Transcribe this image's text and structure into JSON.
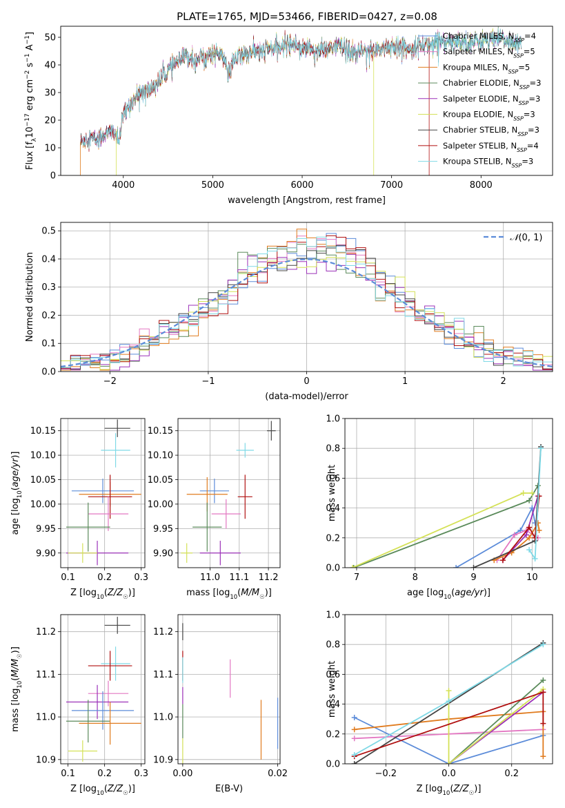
{
  "figure": {
    "title": "PLATE=1765, MJD=53466, FIBERID=0427, z=0.08"
  },
  "colors": {
    "Chabrier MILES": "#5b8bd9",
    "Salpeter MILES": "#e377c2",
    "Kroupa MILES": "#e07b1e",
    "Chabrier ELODIE": "#5a8a5a",
    "Salpeter ELODIE": "#9b30b8",
    "Kroupa ELODIE": "#d4e157",
    "Chabrier STELIB": "#444444",
    "Salpeter STELIB": "#b00f0f",
    "Kroupa STELIB": "#7fd9e6"
  },
  "chart_data": [
    {
      "id": "spectrum",
      "type": "line",
      "xlabel": "wavelength [Angstrom, rest frame]",
      "ylabel": "Flux [f_λ10^-17 erg cm^-2 s^-1 A^-1]",
      "xlim": [
        3300,
        8800
      ],
      "ylim": [
        0,
        54
      ],
      "xticks": [
        4000,
        5000,
        6000,
        7000,
        8000
      ],
      "yticks": [
        0,
        10,
        20,
        30,
        40,
        50
      ],
      "grid": false,
      "legend_position": "top-right",
      "legend": [
        {
          "label": "Chabrier MILES, N",
          "sub": "SSP",
          "suffix": "=4",
          "color": "#5b8bd9"
        },
        {
          "label": "Salpeter MILES, N",
          "sub": "SSP",
          "suffix": "=5",
          "color": "#e377c2"
        },
        {
          "label": "Kroupa MILES, N",
          "sub": "SSP",
          "suffix": "=5",
          "color": "#e07b1e"
        },
        {
          "label": "Chabrier ELODIE, N",
          "sub": "SSP",
          "suffix": "=3",
          "color": "#5a8a5a"
        },
        {
          "label": "Salpeter ELODIE, N",
          "sub": "SSP",
          "suffix": "=3",
          "color": "#9b30b8"
        },
        {
          "label": "Kroupa ELODIE, N",
          "sub": "SSP",
          "suffix": "=3",
          "color": "#d4e157"
        },
        {
          "label": "Chabrier STELIB, N",
          "sub": "SSP",
          "suffix": "=3",
          "color": "#444444"
        },
        {
          "label": "Salpeter STELIB, N",
          "sub": "SSP",
          "suffix": "=4",
          "color": "#b00f0f"
        },
        {
          "label": "Kroupa STELIB, N",
          "sub": "SSP",
          "suffix": "=3",
          "color": "#7fd9e6"
        }
      ],
      "spectrum_knots": [
        [
          3520,
          12
        ],
        [
          3600,
          14
        ],
        [
          3700,
          13
        ],
        [
          3800,
          15
        ],
        [
          3900,
          16
        ],
        [
          3950,
          12
        ],
        [
          4000,
          22
        ],
        [
          4100,
          27
        ],
        [
          4200,
          30
        ],
        [
          4300,
          31
        ],
        [
          4400,
          34
        ],
        [
          4500,
          38
        ],
        [
          4600,
          41
        ],
        [
          4700,
          43
        ],
        [
          4800,
          42
        ],
        [
          4900,
          43
        ],
        [
          5000,
          44
        ],
        [
          5100,
          44
        ],
        [
          5175,
          37
        ],
        [
          5250,
          42
        ],
        [
          5350,
          44
        ],
        [
          5450,
          45
        ],
        [
          5550,
          45
        ],
        [
          5650,
          46
        ],
        [
          5750,
          46
        ],
        [
          5850,
          48
        ],
        [
          5950,
          47
        ],
        [
          6050,
          46
        ],
        [
          6200,
          45
        ],
        [
          6400,
          47
        ],
        [
          6563,
          44
        ],
        [
          6700,
          45
        ],
        [
          6900,
          46
        ],
        [
          7000,
          47
        ],
        [
          7150,
          46
        ],
        [
          7300,
          47
        ],
        [
          7500,
          48
        ],
        [
          7700,
          49
        ],
        [
          7900,
          48
        ],
        [
          8100,
          49
        ],
        [
          8300,
          49
        ],
        [
          8450,
          47
        ]
      ]
    },
    {
      "id": "residual-histogram",
      "type": "histogram",
      "xlabel": "(data-model)/error",
      "ylabel": "Normed distribution",
      "xlim": [
        -2.5,
        2.5
      ],
      "ylim": [
        0,
        0.53
      ],
      "xticks": [
        -2,
        -1,
        0,
        1,
        2
      ],
      "yticks": [
        0.0,
        0.1,
        0.2,
        0.3,
        0.4,
        0.5
      ],
      "grid": true,
      "legend_position": "top-right",
      "legend": [
        {
          "label": "N(0,1)",
          "color": "#5b8bd9",
          "style": "dashed"
        }
      ],
      "bin_width": 0.1,
      "bin_start": -2.5
    },
    {
      "id": "age-vs-Z",
      "type": "errorbar",
      "xlabel": "Z [log10(Z/Z☉)]",
      "ylabel": "age [log10(age/yr)]",
      "xlim": [
        0.08,
        0.31
      ],
      "ylim": [
        9.87,
        10.175
      ],
      "xticks": [
        0.1,
        0.2,
        0.3
      ],
      "yticks": [
        9.9,
        9.95,
        10.0,
        10.05,
        10.1,
        10.15
      ],
      "grid": true,
      "points": [
        {
          "model": "Chabrier STELIB",
          "x": 0.235,
          "y": 10.155,
          "xerr": 0.035,
          "yerr": 0.018
        },
        {
          "model": "Kroupa STELIB",
          "x": 0.23,
          "y": 10.11,
          "xerr": 0.04,
          "yerr": 0.035
        },
        {
          "model": "Chabrier MILES",
          "x": 0.195,
          "y": 10.027,
          "xerr": 0.085,
          "yerr": 0.025
        },
        {
          "model": "Kroupa MILES",
          "x": 0.215,
          "y": 10.02,
          "xerr": 0.085,
          "yerr": 0.025
        },
        {
          "model": "Salpeter STELIB",
          "x": 0.215,
          "y": 10.015,
          "xerr": 0.06,
          "yerr": 0.045
        },
        {
          "model": "Salpeter MILES",
          "x": 0.21,
          "y": 9.98,
          "xerr": 0.055,
          "yerr": 0.035
        },
        {
          "model": "Chabrier ELODIE",
          "x": 0.155,
          "y": 9.953,
          "xerr": 0.06,
          "yerr": 0.05
        },
        {
          "model": "Salpeter ELODIE",
          "x": 0.18,
          "y": 9.9,
          "xerr": 0.085,
          "yerr": 0.025
        },
        {
          "model": "Kroupa ELODIE",
          "x": 0.14,
          "y": 9.9,
          "xerr": 0.04,
          "yerr": 0.02
        }
      ]
    },
    {
      "id": "age-vs-mass",
      "type": "errorbar",
      "xlabel": "mass [log10(M/M☉)]",
      "ylabel": "",
      "xlim": [
        10.89,
        11.24
      ],
      "ylim": [
        9.87,
        10.175
      ],
      "xticks": [
        11.0,
        11.1,
        11.2
      ],
      "yticks": [
        9.9,
        9.95,
        10.0,
        10.05,
        10.1,
        10.15
      ],
      "grid": true,
      "points": [
        {
          "model": "Chabrier STELIB",
          "x": 11.21,
          "y": 10.15,
          "xerr": 0.015,
          "yerr": 0.02
        },
        {
          "model": "Kroupa STELIB",
          "x": 11.12,
          "y": 10.11,
          "xerr": 0.03,
          "yerr": 0.015
        },
        {
          "model": "Chabrier MILES",
          "x": 11.015,
          "y": 10.027,
          "xerr": 0.05,
          "yerr": 0.025
        },
        {
          "model": "Kroupa MILES",
          "x": 10.99,
          "y": 10.02,
          "xerr": 0.07,
          "yerr": 0.035
        },
        {
          "model": "Salpeter STELIB",
          "x": 11.12,
          "y": 10.015,
          "xerr": 0.025,
          "yerr": 0.045
        },
        {
          "model": "Salpeter MILES",
          "x": 11.055,
          "y": 9.98,
          "xerr": 0.05,
          "yerr": 0.03
        },
        {
          "model": "Chabrier ELODIE",
          "x": 10.99,
          "y": 9.953,
          "xerr": 0.05,
          "yerr": 0.05
        },
        {
          "model": "Salpeter ELODIE",
          "x": 11.035,
          "y": 9.9,
          "xerr": 0.07,
          "yerr": 0.025
        },
        {
          "model": "Kroupa ELODIE",
          "x": 10.92,
          "y": 9.9,
          "xerr": 0.02,
          "yerr": 0.02
        }
      ]
    },
    {
      "id": "massweight-vs-age",
      "type": "line",
      "xlabel": "age [log10(age/yr)]",
      "ylabel": "mass weight",
      "xlim": [
        6.8,
        10.35
      ],
      "ylim": [
        0,
        1.0
      ],
      "xticks": [
        7,
        8,
        9,
        10
      ],
      "yticks": [
        0.0,
        0.2,
        0.4,
        0.6,
        0.8,
        1.0
      ],
      "grid": true,
      "series": [
        {
          "model": "Chabrier MILES",
          "x": [
            8.7,
            9.8,
            10.0,
            10.05
          ],
          "y": [
            0.0,
            0.25,
            0.4,
            0.3
          ]
        },
        {
          "model": "Salpeter MILES",
          "x": [
            9.4,
            9.7,
            9.9,
            10.1
          ],
          "y": [
            0.05,
            0.22,
            0.25,
            0.2
          ]
        },
        {
          "model": "Kroupa MILES",
          "x": [
            9.35,
            9.65,
            9.95,
            10.1,
            10.12
          ],
          "y": [
            0.05,
            0.1,
            0.2,
            0.3,
            0.25
          ]
        },
        {
          "model": "Chabrier ELODIE",
          "x": [
            6.95,
            9.95,
            10.1
          ],
          "y": [
            0.0,
            0.45,
            0.55
          ]
        },
        {
          "model": "Salpeter ELODIE",
          "x": [
            9.5,
            9.9,
            10.1
          ],
          "y": [
            0.05,
            0.22,
            0.48
          ]
        },
        {
          "model": "Kroupa ELODIE",
          "x": [
            6.93,
            9.85,
            10.0
          ],
          "y": [
            0.0,
            0.5,
            0.5
          ]
        },
        {
          "model": "Chabrier STELIB",
          "x": [
            9.0,
            10.05,
            10.15
          ],
          "y": [
            0.0,
            0.18,
            0.81
          ]
        },
        {
          "model": "Salpeter STELIB",
          "x": [
            9.5,
            9.95,
            10.05,
            10.12
          ],
          "y": [
            0.05,
            0.27,
            0.2,
            0.48
          ]
        },
        {
          "model": "Kroupa STELIB",
          "x": [
            9.95,
            10.05,
            10.15
          ],
          "y": [
            0.12,
            0.06,
            0.8
          ]
        }
      ]
    },
    {
      "id": "mass-vs-Z",
      "type": "errorbar",
      "xlabel": "Z [log10(Z/Z☉)]",
      "ylabel": "mass [log10(M/M☉)]",
      "xlim": [
        0.08,
        0.31
      ],
      "ylim": [
        10.89,
        11.24
      ],
      "xticks": [
        0.1,
        0.2,
        0.3
      ],
      "yticks": [
        10.9,
        11.0,
        11.1,
        11.2
      ],
      "grid": true,
      "points": [
        {
          "model": "Chabrier STELIB",
          "x": 0.235,
          "y": 11.215,
          "xerr": 0.035,
          "yerr": 0.02
        },
        {
          "model": "Kroupa STELIB",
          "x": 0.23,
          "y": 11.125,
          "xerr": 0.04,
          "yerr": 0.04
        },
        {
          "model": "Salpeter STELIB",
          "x": 0.215,
          "y": 11.12,
          "xerr": 0.06,
          "yerr": 0.035
        },
        {
          "model": "Salpeter MILES",
          "x": 0.21,
          "y": 11.055,
          "xerr": 0.055,
          "yerr": 0.03
        },
        {
          "model": "Salpeter ELODIE",
          "x": 0.18,
          "y": 11.035,
          "xerr": 0.085,
          "yerr": 0.04
        },
        {
          "model": "Chabrier MILES",
          "x": 0.195,
          "y": 11.015,
          "xerr": 0.085,
          "yerr": 0.045
        },
        {
          "model": "Chabrier ELODIE",
          "x": 0.155,
          "y": 10.99,
          "xerr": 0.06,
          "yerr": 0.05
        },
        {
          "model": "Kroupa MILES",
          "x": 0.215,
          "y": 10.985,
          "xerr": 0.085,
          "yerr": 0.05
        },
        {
          "model": "Kroupa ELODIE",
          "x": 0.14,
          "y": 10.92,
          "xerr": 0.04,
          "yerr": 0.025
        }
      ]
    },
    {
      "id": "mass-vs-ebv",
      "type": "errorbar",
      "xlabel": "E(B-V)",
      "ylabel": "",
      "xlim": [
        -0.001,
        0.0205
      ],
      "ylim": [
        10.89,
        11.24
      ],
      "xticks": [
        0.0,
        0.02
      ],
      "yticks": [
        10.9,
        11.0,
        11.1,
        11.2
      ],
      "grid": true,
      "points": [
        {
          "model": "Chabrier STELIB",
          "x": 0.0,
          "y": 11.2,
          "xerr": 0,
          "yerr": 0.02
        },
        {
          "model": "Salpeter STELIB",
          "x": 0.0,
          "y": 11.12,
          "xerr": 0,
          "yerr": 0.035
        },
        {
          "model": "Kroupa STELIB",
          "x": 0.0,
          "y": 11.11,
          "xerr": 0,
          "yerr": 0.03
        },
        {
          "model": "Salpeter ELODIE",
          "x": 0.0,
          "y": 11.05,
          "xerr": 0,
          "yerr": 0.02
        },
        {
          "model": "Chabrier ELODIE",
          "x": 0.0,
          "y": 10.99,
          "xerr": 0,
          "yerr": 0.04
        },
        {
          "model": "Kroupa ELODIE",
          "x": 0.0,
          "y": 10.92,
          "xerr": 0,
          "yerr": 0.03
        },
        {
          "model": "Salpeter MILES",
          "x": 0.01,
          "y": 11.09,
          "xerr": 0,
          "yerr": 0.045
        },
        {
          "model": "Kroupa MILES",
          "x": 0.0165,
          "y": 10.97,
          "xerr": 0,
          "yerr": 0.07
        },
        {
          "model": "Chabrier MILES",
          "x": 0.02,
          "y": 10.985,
          "xerr": 0,
          "yerr": 0.06
        }
      ]
    },
    {
      "id": "massweight-vs-Z",
      "type": "line",
      "xlabel": "Z [log10(Z/Z☉)]",
      "ylabel": "mass weight",
      "xlim": [
        -0.33,
        0.33
      ],
      "ylim": [
        0,
        1.0
      ],
      "xticks": [
        -0.2,
        0.0,
        0.2
      ],
      "yticks": [
        0.0,
        0.2,
        0.4,
        0.6,
        0.8,
        1.0
      ],
      "grid": true,
      "series": [
        {
          "model": "Chabrier MILES",
          "x": [
            -0.3,
            0.0,
            0.3
          ],
          "y": [
            0.31,
            0.0,
            0.19
          ]
        },
        {
          "model": "Salpeter MILES",
          "x": [
            -0.3,
            0.0,
            0.3
          ],
          "y": [
            0.17,
            0.2,
            0.23
          ]
        },
        {
          "model": "Kroupa MILES",
          "x": [
            -0.3,
            0.0,
            0.3,
            0.3
          ],
          "y": [
            0.23,
            0.3,
            0.35,
            0.05
          ]
        },
        {
          "model": "Chabrier ELODIE",
          "x": [
            0.0,
            0.3
          ],
          "y": [
            0.0,
            0.56
          ]
        },
        {
          "model": "Salpeter ELODIE",
          "x": [
            0.0,
            0.3
          ],
          "y": [
            0.0,
            0.48
          ]
        },
        {
          "model": "Kroupa ELODIE",
          "x": [
            0.0,
            0.0,
            0.3
          ],
          "y": [
            0.49,
            0.0,
            0.5
          ]
        },
        {
          "model": "Chabrier STELIB",
          "x": [
            -0.3,
            0.3
          ],
          "y": [
            0.0,
            0.81
          ]
        },
        {
          "model": "Salpeter STELIB",
          "x": [
            -0.3,
            0.3,
            0.3
          ],
          "y": [
            0.05,
            0.48,
            0.27
          ]
        },
        {
          "model": "Kroupa STELIB",
          "x": [
            -0.3,
            0.0,
            0.3
          ],
          "y": [
            0.06,
            0.42,
            0.8
          ]
        }
      ]
    }
  ]
}
